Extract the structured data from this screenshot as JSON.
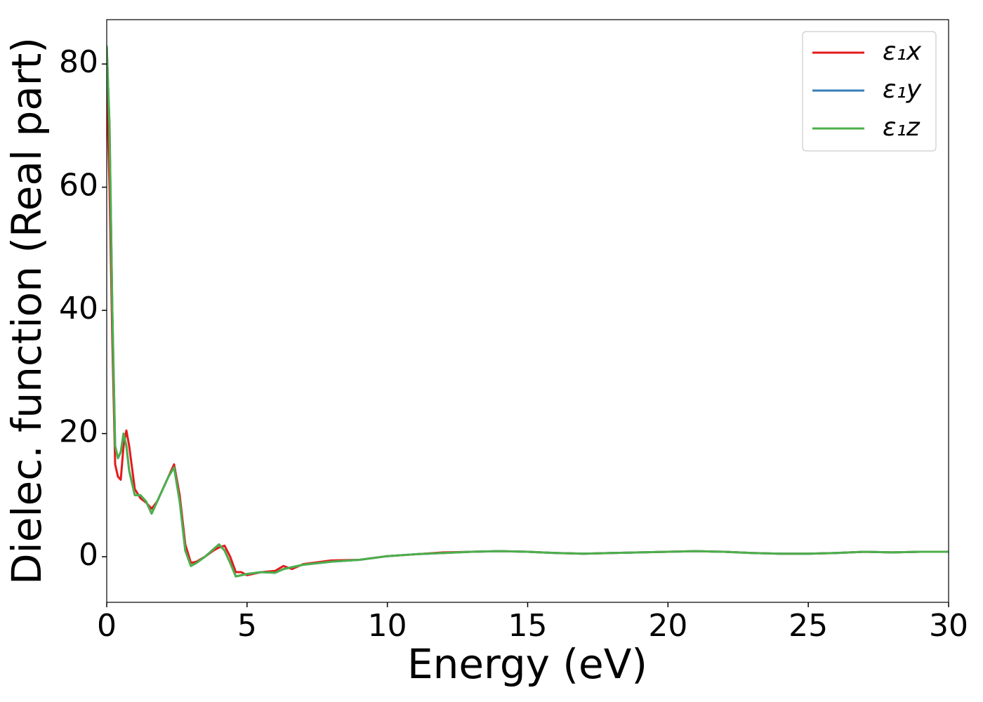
{
  "chart_data": {
    "type": "line",
    "x_label": "Energy (eV)",
    "y_label": "Dielec. function (Real part)",
    "x": [
      0,
      0.1,
      0.2,
      0.3,
      0.4,
      0.5,
      0.6,
      0.7,
      0.8,
      1.0,
      1.2,
      1.4,
      1.6,
      1.8,
      2.0,
      2.2,
      2.4,
      2.6,
      2.8,
      3.0,
      3.2,
      3.5,
      3.8,
      4.0,
      4.2,
      4.4,
      4.6,
      4.8,
      5.0,
      5.5,
      6.0,
      6.3,
      6.6,
      7.0,
      8,
      9,
      10,
      11,
      12,
      13,
      14,
      15,
      16,
      17,
      18,
      19,
      20,
      21,
      22,
      23,
      24,
      25,
      26,
      27,
      28,
      29,
      30
    ],
    "series": [
      {
        "name": "ε₁x",
        "color": "#e41a1c",
        "values": [
          77,
          60,
          35,
          15,
          13,
          12.5,
          18,
          20.5,
          18,
          11,
          9.5,
          8.8,
          7.8,
          9,
          11,
          13,
          15,
          10,
          2,
          -1,
          -0.8,
          0,
          1,
          1.5,
          1.8,
          0,
          -2.5,
          -2.5,
          -3,
          -2.5,
          -2.3,
          -1.5,
          -2,
          -1.2,
          -0.6,
          -0.5,
          0.1,
          0.4,
          0.7,
          0.8,
          0.9,
          0.8,
          0.6,
          0.5,
          0.6,
          0.7,
          0.8,
          0.9,
          0.8,
          0.6,
          0.5,
          0.5,
          0.6,
          0.8,
          0.7,
          0.8,
          0.8
        ]
      },
      {
        "name": "ε₁y",
        "color": "#377eb8",
        "values": [
          83,
          70,
          40,
          18,
          16,
          17,
          20,
          18,
          14,
          10,
          10,
          9,
          7,
          9,
          11,
          13,
          14.5,
          9,
          1,
          -1.5,
          -1,
          0,
          1.2,
          2,
          1,
          -1,
          -3.2,
          -3,
          -2.8,
          -2.5,
          -2.6,
          -2,
          -1.7,
          -1.3,
          -0.8,
          -0.5,
          0.1,
          0.4,
          0.6,
          0.8,
          0.9,
          0.8,
          0.6,
          0.5,
          0.6,
          0.7,
          0.8,
          0.9,
          0.8,
          0.6,
          0.5,
          0.5,
          0.6,
          0.8,
          0.7,
          0.8,
          0.8
        ]
      },
      {
        "name": "ε₁z",
        "color": "#4daf4a",
        "values": [
          83,
          70,
          40,
          18,
          16,
          17,
          20,
          18,
          14,
          10,
          10,
          9,
          7,
          9,
          11,
          13,
          14.5,
          9,
          1,
          -1.5,
          -1,
          0,
          1.2,
          2,
          1,
          -1,
          -3.2,
          -3,
          -2.8,
          -2.5,
          -2.6,
          -2,
          -1.7,
          -1.3,
          -0.8,
          -0.5,
          0.1,
          0.4,
          0.6,
          0.8,
          0.9,
          0.8,
          0.6,
          0.5,
          0.6,
          0.7,
          0.8,
          0.9,
          0.8,
          0.6,
          0.5,
          0.5,
          0.6,
          0.8,
          0.7,
          0.8,
          0.8
        ]
      }
    ],
    "xlim": [
      0,
      30
    ],
    "xticks": [
      0,
      5,
      10,
      15,
      20,
      25,
      30
    ],
    "ylim": [
      -7.4,
      87.2
    ],
    "yticks": [
      0,
      20,
      40,
      60,
      80
    ],
    "grid": false,
    "legend": "upper right"
  }
}
